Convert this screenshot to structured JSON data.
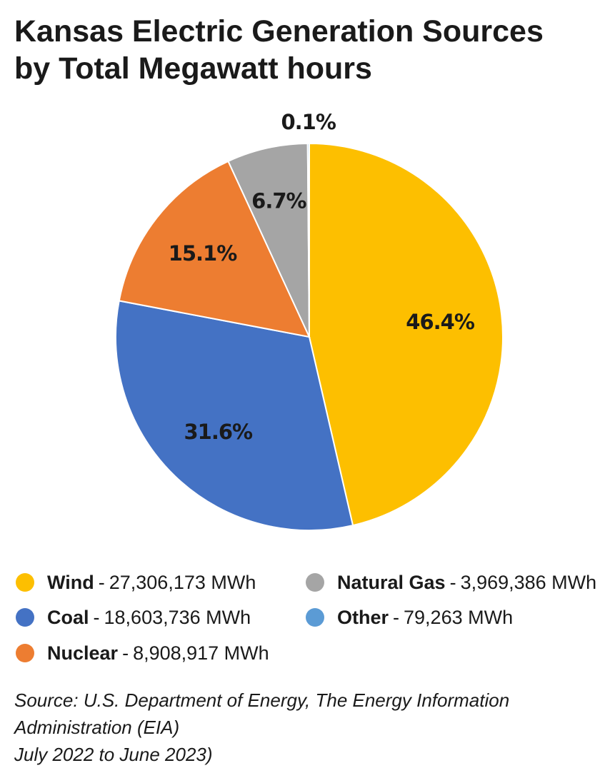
{
  "title_lines": [
    "Kansas Electric Generation Sources",
    "by Total Megawatt hours"
  ],
  "chart_data": {
    "type": "pie",
    "title": "Kansas Electric Generation Sources by Total Megawatt hours",
    "unit": "MWh",
    "slices": [
      {
        "name": "Wind",
        "value": 27306173,
        "value_label": "27,306,173 MWh",
        "percent_label": "46.4%",
        "color": "#FDBF00"
      },
      {
        "name": "Coal",
        "value": 18603736,
        "value_label": "18,603,736 MWh",
        "percent_label": "31.6%",
        "color": "#4472C4"
      },
      {
        "name": "Nuclear",
        "value": 8908917,
        "value_label": "8,908,917 MWh",
        "percent_label": "15.1%",
        "color": "#ED7D31"
      },
      {
        "name": "Natural Gas",
        "value": 3969386,
        "value_label": "3,969,386 MWh",
        "percent_label": "6.7%",
        "color": "#A5A5A5"
      },
      {
        "name": "Other",
        "value": 79263,
        "value_label": "79,263 MWh",
        "percent_label": "0.1%",
        "color": "#5B9BD5"
      }
    ],
    "start_angle_deg": 0,
    "direction": "clockwise",
    "legend_position": "bottom"
  },
  "legend": {
    "separator": "-"
  },
  "source_lines": [
    "Source: U.S. Department of Energy, The Energy Information Administration (EIA)",
    "July 2022 to June 2023)"
  ]
}
